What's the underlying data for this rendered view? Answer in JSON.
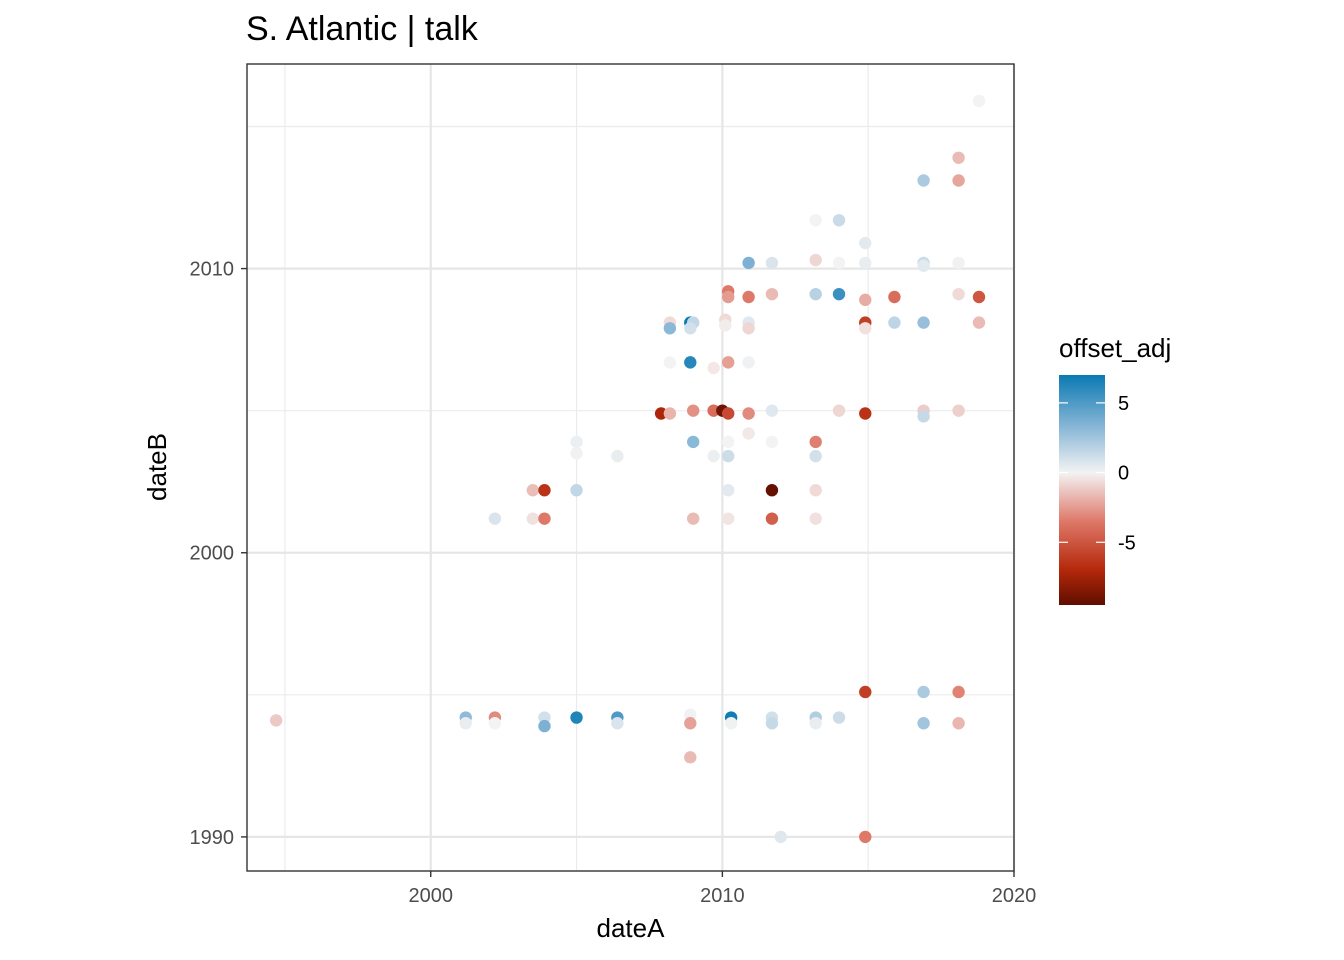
{
  "chart_data": {
    "type": "scatter",
    "title": "S. Atlantic | talk",
    "xlabel": "dateA",
    "ylabel": "dateB",
    "xlim": [
      1993.7,
      2020.0
    ],
    "ylim": [
      1988.8,
      2017.2
    ],
    "x_ticks": [
      2000,
      2010,
      2020
    ],
    "x_tick_labels": [
      "2000",
      "2010",
      "2020"
    ],
    "y_ticks": [
      1990,
      2000,
      2010
    ],
    "y_tick_labels": [
      "1990",
      "2000",
      "2010"
    ],
    "x_minor": [
      1995,
      2005,
      2015
    ],
    "y_minor": [
      1995,
      2005,
      2015
    ],
    "grid": true,
    "legend": {
      "title": "offset_adj",
      "position": "right",
      "range": [
        -9.5,
        7
      ],
      "ticks": [
        5,
        0,
        -5
      ],
      "tick_labels": [
        "5",
        "0",
        "-5"
      ]
    },
    "points": [
      {
        "x": 1994.7,
        "y": 1994.1,
        "v": -1.2
      },
      {
        "x": 2001.2,
        "y": 1994.2,
        "v": 3.0
      },
      {
        "x": 2001.2,
        "y": 1994.0,
        "v": 0.3
      },
      {
        "x": 2002.2,
        "y": 1994.2,
        "v": -3.0
      },
      {
        "x": 2002.2,
        "y": 1994.0,
        "v": 0.0
      },
      {
        "x": 2003.9,
        "y": 1994.2,
        "v": 1.0
      },
      {
        "x": 2003.9,
        "y": 1993.9,
        "v": 3.6
      },
      {
        "x": 2005.0,
        "y": 1994.2,
        "v": 6.4
      },
      {
        "x": 2006.4,
        "y": 1994.2,
        "v": 5.0
      },
      {
        "x": 2006.4,
        "y": 1994.0,
        "v": 0.8
      },
      {
        "x": 2008.9,
        "y": 1994.3,
        "v": 0.1
      },
      {
        "x": 2008.9,
        "y": 1994.0,
        "v": -2.3
      },
      {
        "x": 2008.9,
        "y": 1992.8,
        "v": -1.6
      },
      {
        "x": 2010.3,
        "y": 1994.2,
        "v": 6.8
      },
      {
        "x": 2010.3,
        "y": 1994.0,
        "v": 0.1
      },
      {
        "x": 2011.7,
        "y": 1994.2,
        "v": 1.0
      },
      {
        "x": 2011.7,
        "y": 1994.0,
        "v": 1.4
      },
      {
        "x": 2013.2,
        "y": 1994.2,
        "v": 2.0
      },
      {
        "x": 2013.2,
        "y": 1994.0,
        "v": 0.3
      },
      {
        "x": 2014.0,
        "y": 1994.2,
        "v": 1.2
      },
      {
        "x": 2014.9,
        "y": 1995.1,
        "v": -6.0
      },
      {
        "x": 2016.9,
        "y": 1995.1,
        "v": 2.2
      },
      {
        "x": 2016.9,
        "y": 1994.0,
        "v": 2.5
      },
      {
        "x": 2018.1,
        "y": 1995.1,
        "v": -3.2
      },
      {
        "x": 2018.1,
        "y": 1994.0,
        "v": -1.7
      },
      {
        "x": 2012.0,
        "y": 1990.0,
        "v": 0.6
      },
      {
        "x": 2014.9,
        "y": 1990.0,
        "v": -3.5
      },
      {
        "x": 2002.2,
        "y": 2001.2,
        "v": 0.8
      },
      {
        "x": 2003.5,
        "y": 2002.2,
        "v": -1.5
      },
      {
        "x": 2003.5,
        "y": 2001.2,
        "v": -0.5
      },
      {
        "x": 2003.9,
        "y": 2002.2,
        "v": -6.5
      },
      {
        "x": 2003.9,
        "y": 2001.2,
        "v": -3.5
      },
      {
        "x": 2005.0,
        "y": 2003.9,
        "v": 0.2
      },
      {
        "x": 2005.0,
        "y": 2003.5,
        "v": 0.1
      },
      {
        "x": 2005.0,
        "y": 2002.2,
        "v": 1.5
      },
      {
        "x": 2006.4,
        "y": 2003.4,
        "v": 0.3
      },
      {
        "x": 2007.9,
        "y": 2004.9,
        "v": -7.2
      },
      {
        "x": 2008.2,
        "y": 2008.1,
        "v": -0.7
      },
      {
        "x": 2008.2,
        "y": 2007.9,
        "v": 3.2
      },
      {
        "x": 2008.2,
        "y": 2006.7,
        "v": 0.0
      },
      {
        "x": 2008.2,
        "y": 2004.9,
        "v": -1.8
      },
      {
        "x": 2008.9,
        "y": 2008.1,
        "v": 8.0
      },
      {
        "x": 2009.0,
        "y": 2008.1,
        "v": 1.5
      },
      {
        "x": 2008.9,
        "y": 2007.9,
        "v": 1.0
      },
      {
        "x": 2008.9,
        "y": 2006.7,
        "v": 6.2
      },
      {
        "x": 2009.0,
        "y": 2005.0,
        "v": -2.8
      },
      {
        "x": 2009.0,
        "y": 2003.9,
        "v": 3.2
      },
      {
        "x": 2009.0,
        "y": 2001.2,
        "v": -1.6
      },
      {
        "x": 2009.7,
        "y": 2006.5,
        "v": -0.3
      },
      {
        "x": 2009.7,
        "y": 2003.4,
        "v": 0.2
      },
      {
        "x": 2009.7,
        "y": 2005.0,
        "v": -4.0
      },
      {
        "x": 2010.0,
        "y": 2005.0,
        "v": -9.0
      },
      {
        "x": 2010.2,
        "y": 2004.9,
        "v": -5.5
      },
      {
        "x": 2010.2,
        "y": 2009.2,
        "v": -3.5
      },
      {
        "x": 2010.2,
        "y": 2009.0,
        "v": -2.5
      },
      {
        "x": 2010.1,
        "y": 2008.2,
        "v": -0.7
      },
      {
        "x": 2010.1,
        "y": 2008.0,
        "v": -0.2
      },
      {
        "x": 2010.2,
        "y": 2006.7,
        "v": -2.4
      },
      {
        "x": 2010.2,
        "y": 2003.9,
        "v": 0.0
      },
      {
        "x": 2010.2,
        "y": 2003.4,
        "v": 1.2
      },
      {
        "x": 2010.2,
        "y": 2002.2,
        "v": 0.5
      },
      {
        "x": 2010.2,
        "y": 2001.2,
        "v": -0.4
      },
      {
        "x": 2010.9,
        "y": 2010.2,
        "v": 3.6
      },
      {
        "x": 2010.9,
        "y": 2009.0,
        "v": -3.5
      },
      {
        "x": 2010.9,
        "y": 2008.1,
        "v": 0.6
      },
      {
        "x": 2010.9,
        "y": 2007.9,
        "v": -0.8
      },
      {
        "x": 2010.9,
        "y": 2006.7,
        "v": 0.1
      },
      {
        "x": 2010.9,
        "y": 2004.9,
        "v": -3.0
      },
      {
        "x": 2010.9,
        "y": 2004.2,
        "v": -0.3
      },
      {
        "x": 2011.7,
        "y": 2010.2,
        "v": 0.8
      },
      {
        "x": 2011.7,
        "y": 2009.1,
        "v": -1.6
      },
      {
        "x": 2011.7,
        "y": 2005.0,
        "v": 0.6
      },
      {
        "x": 2011.7,
        "y": 2003.9,
        "v": 0.0
      },
      {
        "x": 2011.7,
        "y": 2002.2,
        "v": -9.3
      },
      {
        "x": 2011.7,
        "y": 2001.2,
        "v": -4.6
      },
      {
        "x": 2013.2,
        "y": 2011.7,
        "v": 0.0
      },
      {
        "x": 2013.2,
        "y": 2010.3,
        "v": -0.8
      },
      {
        "x": 2013.2,
        "y": 2009.1,
        "v": 1.8
      },
      {
        "x": 2013.2,
        "y": 2003.9,
        "v": -3.3
      },
      {
        "x": 2013.2,
        "y": 2003.4,
        "v": 1.0
      },
      {
        "x": 2013.2,
        "y": 2002.2,
        "v": -0.7
      },
      {
        "x": 2013.2,
        "y": 2001.2,
        "v": -0.5
      },
      {
        "x": 2014.0,
        "y": 2011.7,
        "v": 1.3
      },
      {
        "x": 2014.0,
        "y": 2010.2,
        "v": 0.0
      },
      {
        "x": 2014.0,
        "y": 2009.1,
        "v": 5.6
      },
      {
        "x": 2014.0,
        "y": 2005.0,
        "v": -0.8
      },
      {
        "x": 2014.9,
        "y": 2010.9,
        "v": 0.5
      },
      {
        "x": 2014.9,
        "y": 2010.2,
        "v": 0.3
      },
      {
        "x": 2014.9,
        "y": 2008.9,
        "v": -2.0
      },
      {
        "x": 2014.9,
        "y": 2008.1,
        "v": -6.0
      },
      {
        "x": 2014.9,
        "y": 2007.9,
        "v": -0.5
      },
      {
        "x": 2014.9,
        "y": 2004.9,
        "v": -6.5
      },
      {
        "x": 2015.9,
        "y": 2009.0,
        "v": -4.0
      },
      {
        "x": 2015.9,
        "y": 2008.1,
        "v": 1.6
      },
      {
        "x": 2016.9,
        "y": 2013.1,
        "v": 2.2
      },
      {
        "x": 2016.9,
        "y": 2010.2,
        "v": 1.3
      },
      {
        "x": 2016.9,
        "y": 2010.1,
        "v": 0.5
      },
      {
        "x": 2016.9,
        "y": 2008.1,
        "v": 2.8
      },
      {
        "x": 2016.9,
        "y": 2005.0,
        "v": -1.1
      },
      {
        "x": 2016.9,
        "y": 2004.8,
        "v": 1.4
      },
      {
        "x": 2018.1,
        "y": 2013.9,
        "v": -1.6
      },
      {
        "x": 2018.1,
        "y": 2013.1,
        "v": -2.2
      },
      {
        "x": 2018.1,
        "y": 2010.2,
        "v": 0.1
      },
      {
        "x": 2018.1,
        "y": 2009.1,
        "v": -0.7
      },
      {
        "x": 2018.1,
        "y": 2005.0,
        "v": -1.0
      },
      {
        "x": 2018.8,
        "y": 2015.9,
        "v": 0.0
      },
      {
        "x": 2018.8,
        "y": 2009.0,
        "v": -5.0
      },
      {
        "x": 2018.8,
        "y": 2008.1,
        "v": -1.6
      }
    ]
  }
}
